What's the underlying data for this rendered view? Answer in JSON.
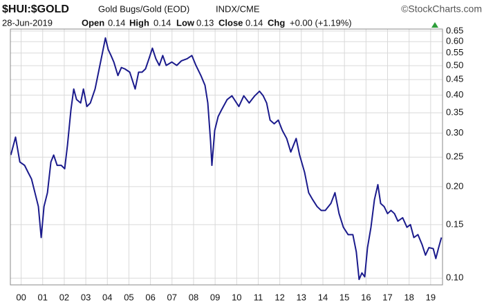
{
  "chart_data": {
    "type": "line",
    "title": "$HUI:$GOLD",
    "subtitle": "Gold Bugs/Gold (EOD)",
    "exchange": "INDX/CME",
    "source": "©StockCharts.com",
    "quote": {
      "date": "28-Jun-2019",
      "open_label": "Open",
      "open": "0.14",
      "high_label": "High",
      "high": "0.14",
      "low_label": "Low",
      "low": "0.13",
      "close_label": "Close",
      "close": "0.14",
      "chg_label": "Chg",
      "chg": "+0.00 (+1.19%)"
    },
    "log_y": true,
    "grid": true,
    "xlim": [
      1999.5,
      2019.55
    ],
    "ylim": [
      0.095,
      0.66
    ],
    "xticks": [
      {
        "value": 2000,
        "label": "00"
      },
      {
        "value": 2001,
        "label": "01"
      },
      {
        "value": 2002,
        "label": "02"
      },
      {
        "value": 2003,
        "label": "03"
      },
      {
        "value": 2004,
        "label": "04"
      },
      {
        "value": 2005,
        "label": "05"
      },
      {
        "value": 2006,
        "label": "06"
      },
      {
        "value": 2007,
        "label": "07"
      },
      {
        "value": 2008,
        "label": "08"
      },
      {
        "value": 2009,
        "label": "09"
      },
      {
        "value": 2010,
        "label": "10"
      },
      {
        "value": 2011,
        "label": "11"
      },
      {
        "value": 2012,
        "label": "12"
      },
      {
        "value": 2013,
        "label": "13"
      },
      {
        "value": 2014,
        "label": "14"
      },
      {
        "value": 2015,
        "label": "15"
      },
      {
        "value": 2016,
        "label": "16"
      },
      {
        "value": 2017,
        "label": "17"
      },
      {
        "value": 2018,
        "label": "18"
      },
      {
        "value": 2019,
        "label": "19"
      }
    ],
    "yticks": [
      0.65,
      {
        "value": 0.6,
        "label": "0.60"
      },
      0.55,
      {
        "value": 0.5,
        "label": "0.50"
      },
      0.45,
      {
        "value": 0.4,
        "label": "0.40"
      },
      0.35,
      {
        "value": 0.3,
        "label": "0.30"
      },
      0.25,
      {
        "value": 0.2,
        "label": "0.20"
      },
      0.15,
      {
        "value": 0.1,
        "label": "0.10"
      }
    ],
    "color": "#1a1a8c",
    "x": [
      1999.52,
      1999.74,
      1999.94,
      2000.16,
      2000.32,
      2000.48,
      2000.64,
      2000.8,
      2000.93,
      2001.06,
      2001.22,
      2001.38,
      2001.51,
      2001.67,
      2001.86,
      2002.02,
      2002.15,
      2002.31,
      2002.44,
      2002.57,
      2002.76,
      2002.89,
      2003.05,
      2003.21,
      2003.43,
      2003.62,
      2003.78,
      2003.91,
      2004.04,
      2004.17,
      2004.3,
      2004.49,
      2004.65,
      2004.81,
      2005.04,
      2005.29,
      2005.45,
      2005.61,
      2005.77,
      2005.93,
      2006.09,
      2006.25,
      2006.41,
      2006.57,
      2006.73,
      2006.99,
      2007.22,
      2007.44,
      2007.7,
      2007.92,
      2008.11,
      2008.34,
      2008.53,
      2008.66,
      2008.79,
      2008.85,
      2008.98,
      2009.14,
      2009.3,
      2009.56,
      2009.78,
      2010.1,
      2010.33,
      2010.58,
      2010.84,
      2011.06,
      2011.23,
      2011.39,
      2011.55,
      2011.74,
      2011.93,
      2012.12,
      2012.32,
      2012.51,
      2012.76,
      2012.92,
      2013.15,
      2013.34,
      2013.53,
      2013.73,
      2013.92,
      2014.11,
      2014.37,
      2014.56,
      2014.75,
      2014.95,
      2015.17,
      2015.39,
      2015.55,
      2015.68,
      2015.81,
      2015.94,
      2016.07,
      2016.23,
      2016.39,
      2016.55,
      2016.68,
      2016.84,
      2017.0,
      2017.16,
      2017.32,
      2017.48,
      2017.7,
      2017.9,
      2018.06,
      2018.22,
      2018.41,
      2018.6,
      2018.76,
      2018.92,
      2019.12,
      2019.24,
      2019.37,
      2019.5
    ],
    "values": [
      0.254,
      0.291,
      0.241,
      0.235,
      0.223,
      0.212,
      0.191,
      0.172,
      0.136,
      0.172,
      0.191,
      0.241,
      0.254,
      0.235,
      0.235,
      0.229,
      0.274,
      0.358,
      0.419,
      0.387,
      0.377,
      0.419,
      0.367,
      0.377,
      0.419,
      0.488,
      0.555,
      0.617,
      0.565,
      0.54,
      0.514,
      0.464,
      0.493,
      0.488,
      0.476,
      0.419,
      0.476,
      0.476,
      0.488,
      0.527,
      0.571,
      0.527,
      0.501,
      0.54,
      0.501,
      0.514,
      0.501,
      0.519,
      0.527,
      0.54,
      0.501,
      0.464,
      0.431,
      0.377,
      0.281,
      0.235,
      0.306,
      0.34,
      0.358,
      0.387,
      0.398,
      0.367,
      0.398,
      0.377,
      0.398,
      0.412,
      0.398,
      0.377,
      0.331,
      0.322,
      0.331,
      0.306,
      0.288,
      0.26,
      0.288,
      0.254,
      0.223,
      0.191,
      0.181,
      0.172,
      0.167,
      0.167,
      0.176,
      0.191,
      0.163,
      0.147,
      0.139,
      0.139,
      0.122,
      0.099,
      0.104,
      0.101,
      0.126,
      0.147,
      0.181,
      0.203,
      0.176,
      0.172,
      0.163,
      0.167,
      0.163,
      0.154,
      0.158,
      0.147,
      0.15,
      0.136,
      0.139,
      0.129,
      0.119,
      0.126,
      0.125,
      0.116,
      0.126,
      0.136
    ]
  }
}
